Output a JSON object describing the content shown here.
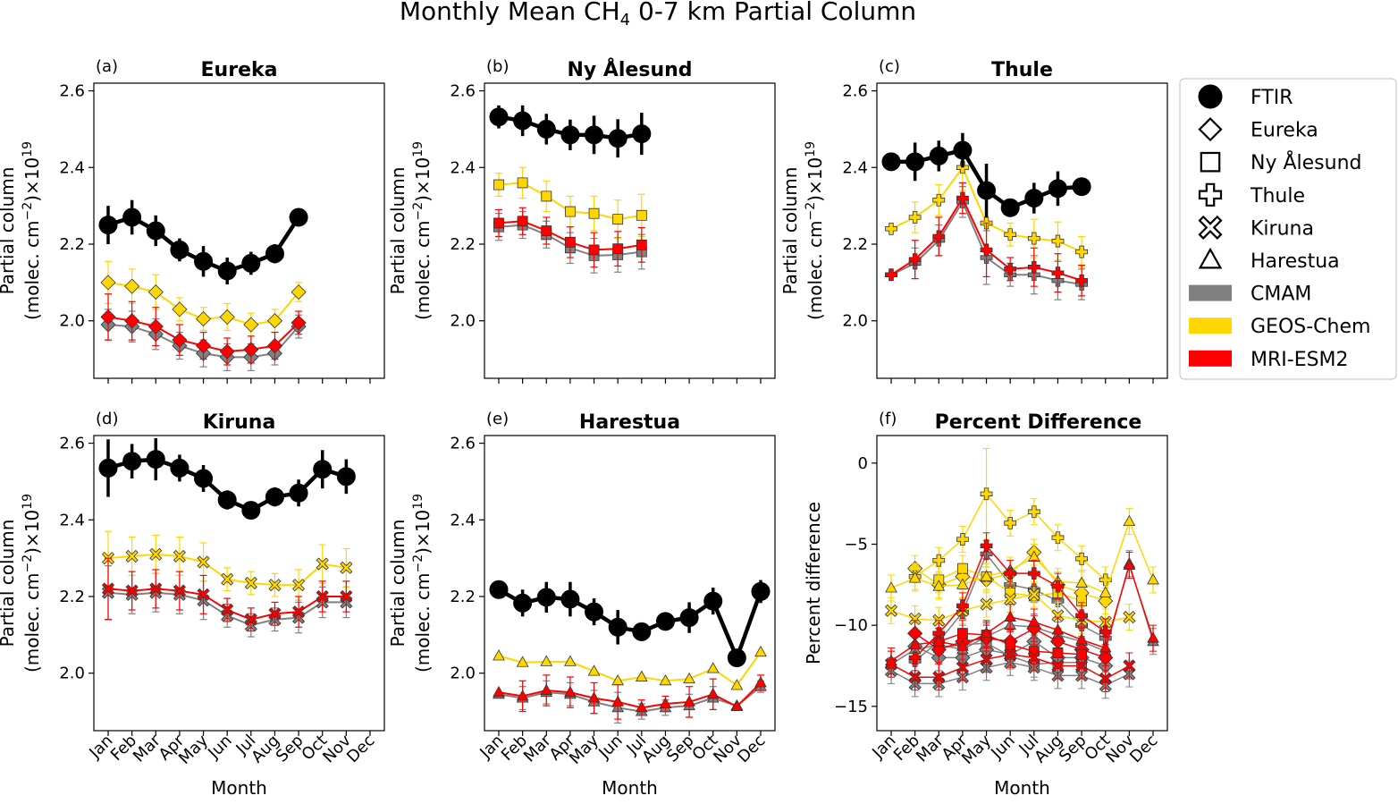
{
  "figure": {
    "title_prefix": "Monthly Mean CH",
    "title_sub": "4",
    "title_suffix": " 0-7 km Partial Column"
  },
  "months": [
    "Jan",
    "Feb",
    "Mar",
    "Apr",
    "May",
    "Jun",
    "Jul",
    "Aug",
    "Sep",
    "Oct",
    "Nov",
    "Dec"
  ],
  "axis_text": {
    "xlabel": "Month",
    "ylabel_pc_1": "Partial column",
    "ylabel_pc_2a": "(molec. cm",
    "ylabel_pc_2b": "−2",
    "ylabel_pc_2c": ")×10",
    "ylabel_pc_2d": "19",
    "ylabel_pd": "Percent difference"
  },
  "legend": {
    "entries": [
      {
        "label": "FTIR",
        "marker": "circle"
      },
      {
        "label": "Eureka",
        "marker": "diamond"
      },
      {
        "label": "Ny Ålesund",
        "marker": "square"
      },
      {
        "label": "Thule",
        "marker": "plus"
      },
      {
        "label": "Kiruna",
        "marker": "cross"
      },
      {
        "label": "Harestua",
        "marker": "triangle"
      },
      {
        "label": "CMAM",
        "marker": "patch",
        "color": "#808080"
      },
      {
        "label": "GEOS-Chem",
        "marker": "patch",
        "color": "#ffd700"
      },
      {
        "label": "MRI-ESM2",
        "marker": "patch",
        "color": "#ff0000"
      }
    ]
  },
  "colors": {
    "FTIR": "#000000",
    "CMAM": "#808080",
    "GEOS-Chem": "#ffd700",
    "MRI-ESM2": "#ff0000"
  },
  "chart_data": [
    {
      "type": "line",
      "label": "(a)",
      "title": "Eureka",
      "marker": "diamond",
      "ylim": [
        1.85,
        2.62
      ],
      "yticks": [
        2.0,
        2.2,
        2.4,
        2.6
      ],
      "series": [
        {
          "name": "CMAM",
          "values": [
            1.99,
            1.985,
            1.965,
            1.935,
            1.915,
            1.905,
            1.905,
            1.915,
            1.985,
            null,
            null,
            null
          ],
          "err": [
            0.04,
            0.04,
            0.04,
            0.035,
            0.035,
            0.035,
            0.035,
            0.03,
            0.03,
            null,
            null,
            null
          ]
        },
        {
          "name": "GEOS-Chem",
          "values": [
            2.1,
            2.09,
            2.075,
            2.03,
            2.005,
            2.01,
            1.99,
            2.0,
            2.075,
            null,
            null,
            null
          ],
          "err": [
            0.055,
            0.045,
            0.045,
            0.03,
            0.03,
            0.035,
            0.03,
            0.03,
            0.025,
            null,
            null,
            null
          ]
        },
        {
          "name": "MRI-ESM2",
          "values": [
            2.01,
            2.0,
            1.985,
            1.95,
            1.935,
            1.92,
            1.925,
            1.935,
            1.995,
            null,
            null,
            null
          ],
          "err": [
            0.06,
            0.05,
            0.05,
            0.04,
            0.035,
            0.035,
            0.035,
            0.035,
            0.03,
            null,
            null,
            null
          ]
        },
        {
          "name": "FTIR",
          "values": [
            2.25,
            2.27,
            2.235,
            2.185,
            2.155,
            2.13,
            2.15,
            2.175,
            2.27,
            null,
            null,
            null
          ],
          "err": [
            0.05,
            0.045,
            0.04,
            0.03,
            0.04,
            0.035,
            0.03,
            0.025,
            0.0,
            null,
            null,
            null
          ]
        }
      ]
    },
    {
      "type": "line",
      "label": "(b)",
      "title": "Ny Ålesund",
      "marker": "square",
      "ylim": [
        1.85,
        2.62
      ],
      "yticks": [
        2.0,
        2.2,
        2.4,
        2.6
      ],
      "series": [
        {
          "name": "CMAM",
          "values": [
            2.245,
            2.25,
            2.225,
            2.19,
            2.17,
            2.172,
            2.18,
            null,
            null,
            null,
            null,
            null
          ],
          "err": [
            0.035,
            0.035,
            0.035,
            0.04,
            0.045,
            0.045,
            0.045,
            null,
            null,
            null,
            null,
            null
          ]
        },
        {
          "name": "GEOS-Chem",
          "values": [
            2.355,
            2.36,
            2.325,
            2.285,
            2.28,
            2.265,
            2.275,
            null,
            null,
            null,
            null,
            null
          ],
          "err": [
            0.03,
            0.04,
            0.04,
            0.04,
            0.045,
            0.05,
            0.055,
            null,
            null,
            null,
            null,
            null
          ]
        },
        {
          "name": "MRI-ESM2",
          "values": [
            2.255,
            2.26,
            2.235,
            2.205,
            2.185,
            2.188,
            2.198,
            null,
            null,
            null,
            null,
            null
          ],
          "err": [
            0.035,
            0.035,
            0.035,
            0.04,
            0.045,
            0.045,
            0.045,
            null,
            null,
            null,
            null,
            null
          ]
        },
        {
          "name": "FTIR",
          "values": [
            2.532,
            2.522,
            2.5,
            2.485,
            2.485,
            2.476,
            2.488,
            null,
            null,
            null,
            null,
            null
          ],
          "err": [
            0.03,
            0.04,
            0.04,
            0.04,
            0.05,
            0.05,
            0.055,
            null,
            null,
            null,
            null,
            null
          ]
        }
      ]
    },
    {
      "type": "line",
      "label": "(c)",
      "title": "Thule",
      "marker": "plus",
      "ylim": [
        1.85,
        2.62
      ],
      "yticks": [
        2.0,
        2.2,
        2.4,
        2.6
      ],
      "series": [
        {
          "name": "CMAM",
          "values": [
            2.12,
            2.15,
            2.21,
            2.31,
            2.165,
            2.12,
            2.12,
            2.105,
            2.095,
            null,
            null,
            null
          ],
          "err": [
            0.0,
            0.04,
            0.04,
            0.04,
            0.07,
            0.03,
            0.05,
            0.05,
            0.04,
            null,
            null,
            null
          ]
        },
        {
          "name": "GEOS-Chem",
          "values": [
            2.24,
            2.27,
            2.315,
            2.4,
            2.255,
            2.225,
            2.215,
            2.208,
            2.18,
            null,
            null,
            null
          ],
          "err": [
            0.0,
            0.04,
            0.04,
            0.06,
            0.07,
            0.03,
            0.05,
            0.05,
            0.04,
            null,
            null,
            null
          ]
        },
        {
          "name": "MRI-ESM2",
          "values": [
            2.12,
            2.16,
            2.22,
            2.32,
            2.185,
            2.135,
            2.14,
            2.125,
            2.105,
            null,
            null,
            null
          ],
          "err": [
            0.0,
            0.05,
            0.05,
            0.04,
            0.07,
            0.03,
            0.05,
            0.05,
            0.04,
            null,
            null,
            null
          ]
        },
        {
          "name": "FTIR",
          "values": [
            2.415,
            2.415,
            2.43,
            2.445,
            2.34,
            2.295,
            2.32,
            2.345,
            2.35,
            null,
            null,
            null
          ],
          "err": [
            0.0,
            0.05,
            0.04,
            0.045,
            0.07,
            0.0,
            0.04,
            0.045,
            0.02,
            null,
            null,
            null
          ]
        }
      ]
    },
    {
      "type": "line",
      "label": "(d)",
      "title": "Kiruna",
      "marker": "cross",
      "ylim": [
        1.85,
        2.62
      ],
      "yticks": [
        2.0,
        2.2,
        2.4,
        2.6
      ],
      "series": [
        {
          "name": "CMAM",
          "values": [
            2.21,
            2.205,
            2.21,
            2.205,
            2.19,
            2.15,
            2.125,
            2.14,
            2.145,
            2.185,
            2.185,
            null
          ],
          "err": [
            0.07,
            0.05,
            0.05,
            0.05,
            0.05,
            0.03,
            0.03,
            0.03,
            0.04,
            0.04,
            0.04,
            null
          ]
        },
        {
          "name": "GEOS-Chem",
          "values": [
            2.3,
            2.305,
            2.31,
            2.305,
            2.29,
            2.245,
            2.235,
            2.23,
            2.23,
            2.285,
            2.275,
            null
          ],
          "err": [
            0.07,
            0.05,
            0.05,
            0.05,
            0.05,
            0.03,
            0.03,
            0.03,
            0.04,
            0.05,
            0.05,
            null
          ]
        },
        {
          "name": "MRI-ESM2",
          "values": [
            2.22,
            2.215,
            2.22,
            2.215,
            2.205,
            2.165,
            2.14,
            2.155,
            2.16,
            2.2,
            2.2,
            null
          ],
          "err": [
            0.08,
            0.05,
            0.05,
            0.05,
            0.05,
            0.03,
            0.03,
            0.03,
            0.04,
            0.04,
            0.04,
            null
          ]
        },
        {
          "name": "FTIR",
          "values": [
            2.535,
            2.553,
            2.558,
            2.535,
            2.508,
            2.452,
            2.425,
            2.46,
            2.47,
            2.532,
            2.513,
            null
          ],
          "err": [
            0.075,
            0.045,
            0.055,
            0.035,
            0.035,
            0.025,
            0.0,
            0.025,
            0.035,
            0.05,
            0.045,
            null
          ]
        }
      ]
    },
    {
      "type": "line",
      "label": "(e)",
      "title": "Harestua",
      "marker": "triangle",
      "ylim": [
        1.85,
        2.62
      ],
      "yticks": [
        2.0,
        2.2,
        2.4,
        2.6
      ],
      "series": [
        {
          "name": "CMAM",
          "values": [
            1.945,
            1.935,
            1.95,
            1.945,
            1.925,
            1.91,
            1.9,
            1.91,
            1.915,
            1.935,
            1.915,
            1.965
          ],
          "err": [
            0.0,
            0.03,
            0.03,
            0.03,
            0.03,
            0.04,
            0.02,
            0.02,
            0.03,
            0.03,
            0.0,
            0.015
          ]
        },
        {
          "name": "GEOS-Chem",
          "values": [
            2.045,
            2.028,
            2.03,
            2.03,
            2.005,
            1.98,
            1.99,
            1.98,
            1.985,
            2.012,
            1.968,
            2.055
          ]
        },
        {
          "name": "MRI-ESM2",
          "values": [
            1.95,
            1.94,
            1.955,
            1.95,
            1.935,
            1.925,
            1.91,
            1.92,
            1.925,
            1.945,
            1.913,
            1.975
          ],
          "err": [
            0.0,
            0.04,
            0.04,
            0.04,
            0.04,
            0.045,
            0.02,
            0.02,
            0.04,
            0.04,
            0.0,
            0.02
          ]
        },
        {
          "name": "FTIR",
          "values": [
            2.218,
            2.183,
            2.198,
            2.193,
            2.16,
            2.12,
            2.108,
            2.135,
            2.145,
            2.188,
            2.04,
            2.213
          ],
          "err": [
            0.0,
            0.035,
            0.04,
            0.045,
            0.035,
            0.045,
            0.0,
            0.02,
            0.04,
            0.035,
            0.0,
            0.03
          ]
        }
      ]
    },
    {
      "type": "scatter",
      "label": "(f)",
      "title": "Percent Difference",
      "ylabel": "Percent difference",
      "ylim": [
        -16.5,
        1.7
      ],
      "yticks": [
        0,
        -5,
        -10,
        -15
      ],
      "series": [
        {
          "name": "Eureka (GEOS-Chem)",
          "model": "GEOS-Chem",
          "marker": "diamond",
          "values": [
            null,
            -6.5,
            -7.5,
            -7.0,
            -7.2,
            -6.8,
            -5.5,
            -7.5,
            -8.0,
            -8.5,
            null,
            null
          ]
        },
        {
          "name": "Eureka (MRI-ESM2)",
          "model": "MRI-ESM2",
          "marker": "diamond",
          "values": [
            null,
            -10.5,
            -11.5,
            -11.0,
            -10.8,
            -11.0,
            -10.2,
            -11.0,
            -11.5,
            -12.0,
            null,
            null
          ]
        },
        {
          "name": "Eureka (CMAM)",
          "model": "CMAM",
          "marker": "diamond",
          "values": [
            null,
            -11.3,
            -12.0,
            -12.0,
            -11.5,
            -11.8,
            -11.0,
            -12.0,
            -12.0,
            -12.5,
            null,
            null
          ]
        },
        {
          "name": "Ny Ålesund (GEOS-Chem)",
          "model": "GEOS-Chem",
          "marker": "square",
          "values": [
            null,
            null,
            -7.2,
            -6.5,
            -7.0,
            -8.0,
            -8.2,
            -8.0,
            -8.5,
            null,
            null,
            null
          ]
        },
        {
          "name": "Ny Ålesund (MRI-ESM2)",
          "model": "MRI-ESM2",
          "marker": "square",
          "values": [
            null,
            null,
            -11.0,
            -10.5,
            -10.6,
            -11.2,
            -11.6,
            -11.7,
            -11.8,
            null,
            null,
            null
          ]
        },
        {
          "name": "Ny Ålesund (CMAM)",
          "model": "CMAM",
          "marker": "square",
          "values": [
            null,
            null,
            -11.4,
            -11.2,
            -11.1,
            -11.9,
            -12.4,
            -12.3,
            -12.3,
            null,
            null,
            null
          ]
        },
        {
          "name": "Thule (GEOS-Chem)",
          "model": "GEOS-Chem",
          "marker": "plus",
          "values": [
            null,
            -7.0,
            -6.0,
            -4.7,
            -1.9,
            -3.7,
            -3.0,
            -4.6,
            -5.9,
            -7.2,
            null,
            null
          ]
        },
        {
          "name": "Thule (MRI-ESM2)",
          "model": "MRI-ESM2",
          "marker": "plus",
          "values": [
            null,
            -12.0,
            -10.5,
            -8.8,
            -5.1,
            -6.8,
            -6.8,
            -7.6,
            -9.4,
            -10.4,
            null,
            null
          ]
        },
        {
          "name": "Thule (CMAM)",
          "model": "CMAM",
          "marker": "plus",
          "values": [
            null,
            -12.2,
            -11.0,
            -9.2,
            -5.6,
            -7.5,
            -7.8,
            -8.5,
            -10.0,
            -10.8,
            null,
            null
          ]
        },
        {
          "name": "Kiruna (GEOS-Chem)",
          "model": "GEOS-Chem",
          "marker": "cross",
          "values": [
            -9.1,
            -9.6,
            -9.7,
            -9.1,
            -8.7,
            -8.4,
            -8.1,
            -9.4,
            -9.7,
            -9.8,
            -9.5,
            null
          ]
        },
        {
          "name": "Kiruna (MRI-ESM2)",
          "model": "MRI-ESM2",
          "marker": "cross",
          "values": [
            -12.4,
            -13.2,
            -13.2,
            -12.6,
            -12.1,
            -11.8,
            -12.0,
            -12.5,
            -12.5,
            -13.3,
            -12.5,
            null
          ]
        },
        {
          "name": "Kiruna (CMAM)",
          "model": "CMAM",
          "marker": "cross",
          "values": [
            -12.8,
            -13.6,
            -13.6,
            -13.2,
            -12.6,
            -12.3,
            -12.6,
            -13.1,
            -13.1,
            -13.7,
            -13.0,
            null
          ]
        },
        {
          "name": "Harestua (GEOS-Chem)",
          "model": "GEOS-Chem",
          "marker": "triangle",
          "values": [
            -7.7,
            -7.1,
            -7.6,
            -7.5,
            -7.0,
            -6.6,
            -5.8,
            -7.3,
            -7.4,
            -8.0,
            -3.6,
            -7.2
          ]
        },
        {
          "name": "Harestua (MRI-ESM2)",
          "model": "MRI-ESM2",
          "marker": "triangle",
          "values": [
            -12.2,
            -11.2,
            -11.0,
            -11.3,
            -10.5,
            -9.5,
            -9.8,
            -10.3,
            -10.9,
            -11.4,
            -6.3,
            -10.8
          ]
        },
        {
          "name": "Harestua (CMAM)",
          "model": "CMAM",
          "marker": "triangle",
          "values": [
            -12.4,
            -11.5,
            -11.2,
            -11.5,
            -10.7,
            -10.0,
            -10.1,
            -10.6,
            -11.0,
            -11.6,
            -6.2,
            -11.0
          ]
        }
      ]
    }
  ]
}
